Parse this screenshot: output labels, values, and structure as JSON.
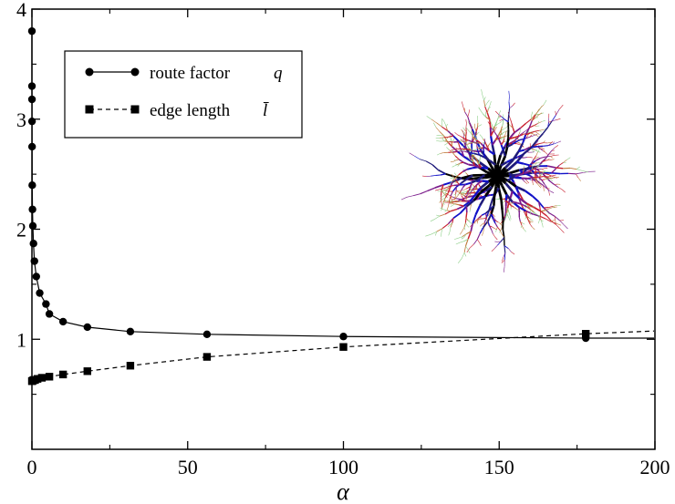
{
  "chart_data": {
    "type": "line",
    "xlabel": "α",
    "ylabel": "",
    "title": "",
    "xlim": [
      0,
      200
    ],
    "ylim": [
      0,
      4
    ],
    "x_ticks": [
      "0",
      "50",
      "100",
      "150",
      "200"
    ],
    "y_ticks": [
      "1",
      "2",
      "3",
      "4"
    ],
    "legend_position": "top-left",
    "grid": false,
    "series": [
      {
        "name": "route factor",
        "symbol": "q",
        "marker": "circle",
        "line_style": "solid",
        "color": "#000000",
        "points": [
          [
            0.0,
            3.8
          ],
          [
            0.01,
            3.3
          ],
          [
            0.02,
            3.18
          ],
          [
            0.03,
            2.98
          ],
          [
            0.05,
            2.75
          ],
          [
            0.1,
            2.4
          ],
          [
            0.18,
            2.18
          ],
          [
            0.3,
            2.03
          ],
          [
            0.5,
            1.87
          ],
          [
            0.8,
            1.71
          ],
          [
            1.4,
            1.57
          ],
          [
            2.5,
            1.42
          ],
          [
            4.5,
            1.32
          ],
          [
            5.6,
            1.23
          ],
          [
            10,
            1.16
          ],
          [
            17.8,
            1.11
          ],
          [
            31.6,
            1.07
          ],
          [
            56.2,
            1.045
          ],
          [
            100,
            1.025
          ],
          [
            177.8,
            1.01
          ]
        ]
      },
      {
        "name": "edge length",
        "symbol": "l̄",
        "marker": "square",
        "line_style": "dashed",
        "color": "#000000",
        "points": [
          [
            0.0,
            0.62
          ],
          [
            0.1,
            0.62
          ],
          [
            0.3,
            0.625
          ],
          [
            0.6,
            0.63
          ],
          [
            1.0,
            0.63
          ],
          [
            1.8,
            0.64
          ],
          [
            3.2,
            0.65
          ],
          [
            5.6,
            0.66
          ],
          [
            10,
            0.68
          ],
          [
            17.8,
            0.71
          ],
          [
            31.6,
            0.76
          ],
          [
            56.2,
            0.84
          ],
          [
            100,
            0.93
          ],
          [
            177.8,
            1.05
          ]
        ]
      }
    ]
  },
  "inset": {
    "colors": [
      "#000000",
      "#1f1b7a",
      "#1010c8",
      "#7a1a8a",
      "#c81e2e",
      "#c07a3a",
      "#8fd08a"
    ]
  }
}
